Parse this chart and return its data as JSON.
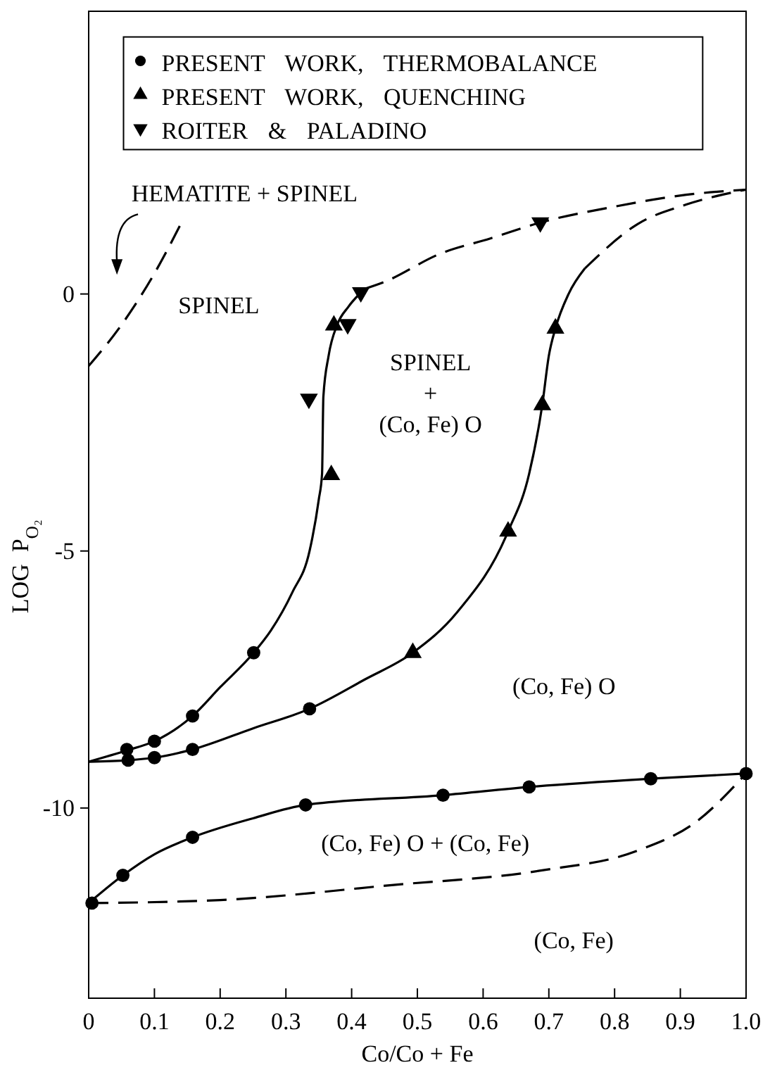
{
  "chart_data": {
    "type": "scatter",
    "xlabel": "Co/Co + Fe",
    "ylabel": "LOG  P$_{O₂}$",
    "xlim": [
      0,
      1
    ],
    "ylim": [
      -13.7,
      5.5
    ],
    "xticks": [
      0,
      0.1,
      0.2,
      0.3,
      0.4,
      0.5,
      0.6,
      0.7,
      0.8,
      0.9,
      {
        "value": 1,
        "label": "1.0"
      }
    ],
    "yticks": [
      0,
      -5,
      -10
    ],
    "grid": false,
    "legend": "top",
    "series": [
      {
        "name": "PRESENT WORK, THERMOBALANCE",
        "marker": "circle",
        "color": "#000000",
        "x": [
          0.058,
          0.06,
          0.1,
          0.1,
          0.158,
          0.158,
          0.251,
          0.336,
          0.005,
          0.052,
          0.158,
          0.33,
          0.539,
          0.67,
          0.855,
          1.0
        ],
        "values": [
          -8.86,
          -9.07,
          -8.7,
          -9.02,
          -8.21,
          -8.86,
          -6.98,
          -8.07,
          -11.85,
          -11.31,
          -10.57,
          -9.94,
          -9.75,
          -9.59,
          -9.43,
          -9.33
        ]
      },
      {
        "name": "PRESENT WORK, QUENCHING",
        "marker": "triangle",
        "color": "#000000",
        "x": [
          0.369,
          0.373,
          0.493,
          0.638,
          0.69,
          0.71
        ],
        "values": [
          -3.52,
          -0.61,
          -6.98,
          -4.62,
          -2.16,
          -0.67
        ]
      },
      {
        "name": "ROITER & PALADINO",
        "marker": "triangle-down",
        "color": "#000000",
        "x": [
          0.335,
          0.394,
          0.414,
          0.687
        ],
        "values": [
          -2.04,
          -0.59,
          0.03,
          1.39
        ]
      },
      {
        "type": "line",
        "marker": "none",
        "line_style": "solid",
        "color": "#000000",
        "x": [
          0,
          0.058,
          0.1,
          0.158,
          0.2,
          0.251,
          0.277,
          0.31,
          0.336,
          0.35,
          0.355,
          0.357,
          0.365,
          0.378,
          0.395,
          0.42
        ],
        "values": [
          -9.1,
          -8.88,
          -8.7,
          -8.21,
          -7.65,
          -6.98,
          -6.55,
          -5.8,
          -5.0,
          -4.0,
          -3.5,
          -2.0,
          -1.2,
          -0.6,
          -0.25,
          0.1
        ]
      },
      {
        "type": "line",
        "marker": "none",
        "line_style": "dashed",
        "color": "#000000",
        "x": [
          0.42,
          0.447,
          0.536,
          0.611,
          0.687,
          0.8,
          0.909,
          1.0
        ],
        "values": [
          0.1,
          0.22,
          0.79,
          1.08,
          1.39,
          1.7,
          1.93,
          2.03
        ]
      },
      {
        "type": "line",
        "marker": "none",
        "line_style": "solid",
        "color": "#000000",
        "x": [
          0,
          0.06,
          0.1,
          0.158,
          0.25,
          0.336,
          0.42,
          0.493,
          0.56,
          0.638,
          0.67,
          0.69,
          0.7,
          0.71,
          0.73,
          0.755
        ],
        "values": [
          -9.1,
          -9.07,
          -9.02,
          -8.86,
          -8.45,
          -8.07,
          -7.5,
          -6.98,
          -6.2,
          -4.62,
          -3.5,
          -2.16,
          -1.2,
          -0.67,
          0.0,
          0.5
        ]
      },
      {
        "type": "line",
        "marker": "none",
        "line_style": "dashed",
        "color": "#000000",
        "x": [
          0.755,
          0.835,
          0.909,
          1.0
        ],
        "values": [
          0.5,
          1.36,
          1.74,
          2.03
        ]
      },
      {
        "type": "line",
        "marker": "none",
        "line_style": "solid",
        "color": "#000000",
        "x": [
          0,
          0.052,
          0.1,
          0.158,
          0.25,
          0.33,
          0.539,
          0.67,
          0.855,
          1.0
        ],
        "values": [
          -11.85,
          -11.31,
          -10.9,
          -10.57,
          -10.2,
          -9.94,
          -9.75,
          -9.59,
          -9.43,
          -9.33
        ]
      },
      {
        "type": "line",
        "marker": "none",
        "line_style": "dashed",
        "color": "#000000",
        "x": [
          0,
          0.2,
          0.461,
          0.686,
          0.835,
          0.925,
          1.0
        ],
        "values": [
          -11.85,
          -11.79,
          -11.5,
          -11.22,
          -10.83,
          -10.26,
          -9.33
        ]
      },
      {
        "type": "line",
        "marker": "none",
        "line_style": "dashed",
        "color": "#000000",
        "x": [
          0,
          0.05,
          0.1,
          0.144
        ],
        "values": [
          -1.4,
          -0.6,
          0.4,
          1.46
        ]
      }
    ],
    "annotations": [
      "HEMATITE + SPINEL",
      "SPINEL",
      "SPINEL\n+\n(Co, Fe) O",
      "(Co, Fe) O",
      "(Co, Fe) O + (Co, Fe)",
      "(Co, Fe)"
    ]
  }
}
